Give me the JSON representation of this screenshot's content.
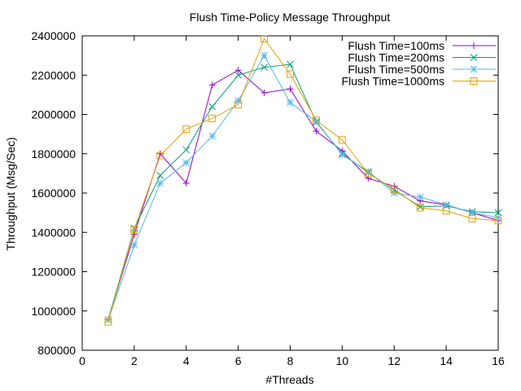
{
  "chart_data": {
    "type": "line",
    "title": "Flush Time-Policy Message Throughput",
    "xlabel": "#Threads",
    "ylabel": "Throughput (Msg/Sec)",
    "xlim": [
      0,
      16
    ],
    "ylim": [
      800000,
      2400000
    ],
    "xticks": [
      0,
      2,
      4,
      6,
      8,
      10,
      12,
      14,
      16
    ],
    "yticks": [
      800000,
      1000000,
      1200000,
      1400000,
      1600000,
      1800000,
      2000000,
      2200000,
      2400000
    ],
    "grid": false,
    "legend_position": "top-right",
    "x": [
      1,
      2,
      3,
      4,
      5,
      6,
      7,
      8,
      9,
      10,
      11,
      12,
      13,
      14,
      15,
      16
    ],
    "series": [
      {
        "name": "Flush Time=100ms",
        "color": "#9400d3",
        "marker": "plus",
        "values": [
          955000,
          1390000,
          1800000,
          1650000,
          2150000,
          2225000,
          2110000,
          2130000,
          1915000,
          1815000,
          1675000,
          1635000,
          1560000,
          1540000,
          1500000,
          1460000
        ]
      },
      {
        "name": "Flush Time=200ms",
        "color": "#009e73",
        "marker": "cross",
        "values": [
          955000,
          1420000,
          1690000,
          1820000,
          2040000,
          2200000,
          2240000,
          2255000,
          1960000,
          1800000,
          1705000,
          1615000,
          1530000,
          1535000,
          1505000,
          1500000
        ]
      },
      {
        "name": "Flush Time=500ms",
        "color": "#56b4e9",
        "marker": "star",
        "values": [
          955000,
          1335000,
          1650000,
          1755000,
          1890000,
          2070000,
          2300000,
          2060000,
          1965000,
          1795000,
          1710000,
          1600000,
          1580000,
          1540000,
          1500000,
          1475000
        ]
      },
      {
        "name": "Flush Time=1000ms",
        "color": "#e69f00",
        "marker": "square",
        "values": [
          945000,
          1415000,
          1790000,
          1925000,
          1980000,
          2050000,
          2385000,
          2205000,
          1970000,
          1870000,
          1700000,
          1620000,
          1525000,
          1510000,
          1470000,
          1460000
        ]
      }
    ]
  }
}
